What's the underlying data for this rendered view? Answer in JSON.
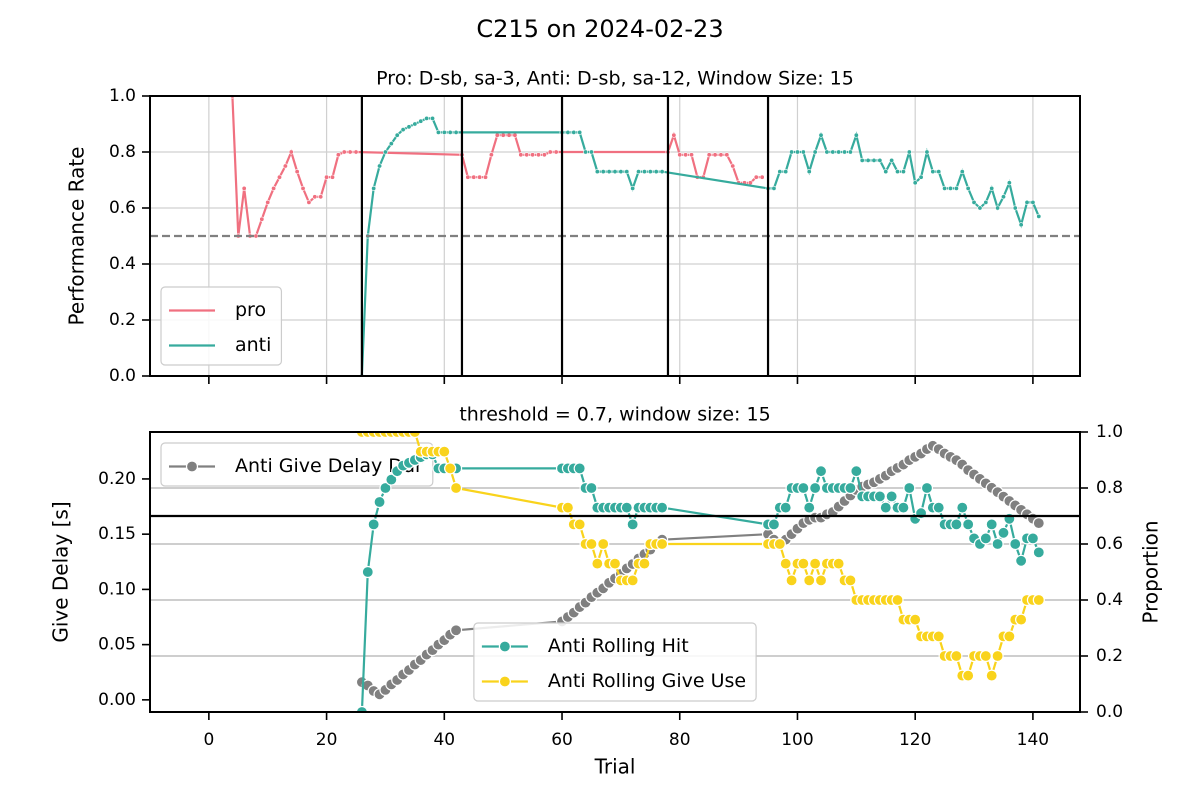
{
  "title": "C215 on 2024-02-23",
  "chart_data": [
    {
      "type": "line",
      "title": "Pro: D-sb, sa-3, Anti: D-sb, sa-12, Window Size: 15",
      "ylabel": "Performance Rate",
      "xlim": [
        -10,
        148
      ],
      "ylim": [
        0,
        1
      ],
      "xticks": [
        0,
        20,
        40,
        60,
        80,
        100,
        120,
        140
      ],
      "yticks": [
        {
          "value": 0,
          "label": "0.0"
        },
        0.2,
        0.4,
        0.6,
        0.8,
        {
          "value": 1,
          "label": "1.0"
        }
      ],
      "grid": true,
      "legend": "lower left",
      "hline": {
        "value": 0.5,
        "color": "#808080",
        "style": "dashed"
      },
      "vlines": [
        26,
        43,
        60,
        78,
        95
      ],
      "series": [
        {
          "name": "pro",
          "color": "#f07080",
          "x": [
            4,
            5,
            6,
            7,
            8,
            9,
            10,
            11,
            12,
            13,
            14,
            15,
            16,
            17,
            18,
            19,
            20,
            21,
            22,
            23,
            24,
            25,
            43,
            44,
            45,
            46,
            47,
            48,
            49,
            50,
            51,
            52,
            53,
            54,
            55,
            56,
            57,
            58,
            59,
            78,
            79,
            80,
            81,
            82,
            83,
            84,
            85,
            86,
            87,
            88,
            89,
            90,
            91,
            92,
            93,
            94
          ],
          "values": [
            1.0,
            0.5,
            0.67,
            0.5,
            0.5,
            0.56,
            0.62,
            0.67,
            0.71,
            0.75,
            0.8,
            0.73,
            0.67,
            0.62,
            0.64,
            0.64,
            0.71,
            0.71,
            0.79,
            0.8,
            0.8,
            0.8,
            0.79,
            0.71,
            0.71,
            0.71,
            0.71,
            0.79,
            0.86,
            0.86,
            0.86,
            0.86,
            0.79,
            0.79,
            0.79,
            0.79,
            0.79,
            0.8,
            0.8,
            0.8,
            0.86,
            0.79,
            0.79,
            0.79,
            0.71,
            0.71,
            0.79,
            0.79,
            0.79,
            0.79,
            0.75,
            0.69,
            0.69,
            0.69,
            0.71,
            0.71
          ]
        },
        {
          "name": "anti",
          "color": "#36ab9d",
          "x": [
            26,
            27,
            28,
            29,
            30,
            31,
            32,
            33,
            34,
            35,
            36,
            37,
            38,
            39,
            40,
            41,
            42,
            60,
            61,
            62,
            63,
            64,
            65,
            66,
            67,
            68,
            69,
            70,
            71,
            72,
            73,
            74,
            75,
            76,
            77,
            95,
            96,
            97,
            98,
            99,
            100,
            101,
            102,
            103,
            104,
            105,
            106,
            107,
            108,
            109,
            110,
            111,
            112,
            113,
            114,
            115,
            116,
            117,
            118,
            119,
            120,
            121,
            122,
            123,
            124,
            125,
            126,
            127,
            128,
            129,
            130,
            131,
            132,
            133,
            134,
            135,
            136,
            137,
            138,
            139,
            140,
            141
          ],
          "values": [
            0,
            0.5,
            0.67,
            0.75,
            0.8,
            0.83,
            0.86,
            0.88,
            0.89,
            0.9,
            0.91,
            0.92,
            0.92,
            0.87,
            0.87,
            0.87,
            0.87,
            0.87,
            0.87,
            0.87,
            0.87,
            0.8,
            0.8,
            0.73,
            0.73,
            0.73,
            0.73,
            0.73,
            0.73,
            0.67,
            0.73,
            0.73,
            0.73,
            0.73,
            0.73,
            0.67,
            0.67,
            0.73,
            0.73,
            0.8,
            0.8,
            0.8,
            0.73,
            0.8,
            0.86,
            0.8,
            0.8,
            0.8,
            0.8,
            0.8,
            0.86,
            0.77,
            0.77,
            0.77,
            0.77,
            0.73,
            0.77,
            0.73,
            0.73,
            0.8,
            0.69,
            0.71,
            0.8,
            0.73,
            0.73,
            0.67,
            0.67,
            0.67,
            0.73,
            0.67,
            0.62,
            0.6,
            0.62,
            0.67,
            0.6,
            0.64,
            0.69,
            0.6,
            0.54,
            0.62,
            0.62,
            0.57
          ]
        }
      ]
    },
    {
      "type": "line",
      "title": "threshold = 0.7, window size: 15",
      "xlabel": "Trial",
      "ylabel": "Give Delay [s]",
      "y2label": "Proportion",
      "xlim": [
        -10,
        148
      ],
      "ylim": [
        -0.011,
        0.2425
      ],
      "y2lim": [
        0,
        1
      ],
      "xticks": [
        0,
        20,
        40,
        60,
        80,
        100,
        120,
        140
      ],
      "yticks": [
        {
          "value": 0,
          "label": "0.00"
        },
        0.05,
        {
          "value": 0.1,
          "label": "0.10"
        },
        0.15,
        {
          "value": 0.2,
          "label": "0.20"
        }
      ],
      "y2ticks": [
        {
          "value": 0,
          "label": "0.0"
        },
        0.2,
        0.4,
        0.6,
        0.8,
        {
          "value": 1,
          "label": "1.0"
        }
      ],
      "grid": "y2",
      "legend": "upper left",
      "legend2": "lower center",
      "hline": {
        "value": 0.7,
        "axis": "y2",
        "color": "#000000",
        "style": "solid"
      },
      "series": [
        {
          "name": "Anti Give Delay Dur",
          "color": "#808080",
          "x": [
            26,
            27,
            28,
            29,
            30,
            31,
            32,
            33,
            34,
            35,
            36,
            37,
            38,
            39,
            40,
            41,
            42,
            60,
            61,
            62,
            63,
            64,
            65,
            66,
            67,
            68,
            69,
            70,
            71,
            72,
            73,
            74,
            75,
            76,
            77,
            95,
            96,
            97,
            98,
            99,
            100,
            101,
            102,
            103,
            104,
            105,
            106,
            107,
            108,
            109,
            110,
            111,
            112,
            113,
            114,
            115,
            116,
            117,
            118,
            119,
            120,
            121,
            122,
            123,
            124,
            125,
            126,
            127,
            128,
            129,
            130,
            131,
            132,
            133,
            134,
            135,
            136,
            137,
            138,
            139,
            140,
            141
          ],
          "values": [
            0.016,
            0.013,
            0.008,
            0.005,
            0.009,
            0.014,
            0.018,
            0.023,
            0.027,
            0.032,
            0.036,
            0.041,
            0.045,
            0.05,
            0.054,
            0.059,
            0.063,
            0.071,
            0.075,
            0.079,
            0.084,
            0.088,
            0.093,
            0.097,
            0.101,
            0.106,
            0.11,
            0.114,
            0.119,
            0.123,
            0.128,
            0.132,
            0.136,
            0.141,
            0.145,
            0.15,
            0.145,
            0.14,
            0.145,
            0.15,
            0.155,
            0.16,
            0.163,
            0.165,
            0.165,
            0.168,
            0.17,
            0.175,
            0.18,
            0.185,
            0.19,
            0.193,
            0.195,
            0.197,
            0.2,
            0.203,
            0.207,
            0.21,
            0.213,
            0.217,
            0.22,
            0.223,
            0.227,
            0.23,
            0.227,
            0.223,
            0.22,
            0.217,
            0.213,
            0.208,
            0.204,
            0.2,
            0.196,
            0.192,
            0.188,
            0.184,
            0.18,
            0.176,
            0.172,
            0.168,
            0.164,
            0.16
          ]
        },
        {
          "name": "Anti Rolling Hit",
          "color": "#36ab9d",
          "axis": "y2",
          "x": [
            26,
            27,
            28,
            29,
            30,
            31,
            32,
            33,
            34,
            35,
            36,
            37,
            38,
            39,
            40,
            41,
            42,
            60,
            61,
            62,
            63,
            64,
            65,
            66,
            67,
            68,
            69,
            70,
            71,
            72,
            73,
            74,
            75,
            76,
            77,
            95,
            96,
            97,
            98,
            99,
            100,
            101,
            102,
            103,
            104,
            105,
            106,
            107,
            108,
            109,
            110,
            111,
            112,
            113,
            114,
            115,
            116,
            117,
            118,
            119,
            120,
            121,
            122,
            123,
            124,
            125,
            126,
            127,
            128,
            129,
            130,
            131,
            132,
            133,
            134,
            135,
            136,
            137,
            138,
            139,
            140,
            141
          ],
          "values": [
            0,
            0.5,
            0.67,
            0.75,
            0.8,
            0.83,
            0.86,
            0.88,
            0.89,
            0.9,
            0.91,
            0.92,
            0.92,
            0.87,
            0.87,
            0.87,
            0.87,
            0.87,
            0.87,
            0.87,
            0.87,
            0.8,
            0.8,
            0.73,
            0.73,
            0.73,
            0.73,
            0.73,
            0.73,
            0.67,
            0.73,
            0.73,
            0.73,
            0.73,
            0.73,
            0.67,
            0.67,
            0.73,
            0.73,
            0.8,
            0.8,
            0.8,
            0.73,
            0.8,
            0.86,
            0.8,
            0.8,
            0.8,
            0.8,
            0.8,
            0.86,
            0.77,
            0.77,
            0.77,
            0.77,
            0.73,
            0.77,
            0.73,
            0.73,
            0.8,
            0.69,
            0.71,
            0.8,
            0.73,
            0.73,
            0.67,
            0.67,
            0.67,
            0.73,
            0.67,
            0.62,
            0.6,
            0.62,
            0.67,
            0.6,
            0.64,
            0.69,
            0.6,
            0.54,
            0.62,
            0.62,
            0.57
          ]
        },
        {
          "name": "Anti Rolling Give Use",
          "color": "#f9d31c",
          "axis": "y2",
          "x": [
            26,
            27,
            28,
            29,
            30,
            31,
            32,
            33,
            34,
            35,
            36,
            37,
            38,
            39,
            40,
            41,
            42,
            60,
            61,
            62,
            63,
            64,
            65,
            66,
            67,
            68,
            69,
            70,
            71,
            72,
            73,
            74,
            75,
            76,
            77,
            95,
            96,
            97,
            98,
            99,
            100,
            101,
            102,
            103,
            104,
            105,
            106,
            107,
            108,
            109,
            110,
            111,
            112,
            113,
            114,
            115,
            116,
            117,
            118,
            119,
            120,
            121,
            122,
            123,
            124,
            125,
            126,
            127,
            128,
            129,
            130,
            131,
            132,
            133,
            134,
            135,
            136,
            137,
            138,
            139,
            140,
            141
          ],
          "values": [
            1.0,
            1.0,
            1.0,
            1.0,
            1.0,
            1.0,
            1.0,
            1.0,
            1.0,
            1.0,
            0.93,
            0.93,
            0.93,
            0.93,
            0.93,
            0.87,
            0.8,
            0.73,
            0.73,
            0.67,
            0.67,
            0.6,
            0.6,
            0.53,
            0.6,
            0.53,
            0.53,
            0.47,
            0.47,
            0.47,
            0.53,
            0.53,
            0.6,
            0.6,
            0.6,
            0.6,
            0.6,
            0.6,
            0.53,
            0.47,
            0.53,
            0.53,
            0.47,
            0.53,
            0.47,
            0.53,
            0.53,
            0.53,
            0.47,
            0.47,
            0.4,
            0.4,
            0.4,
            0.4,
            0.4,
            0.4,
            0.4,
            0.4,
            0.33,
            0.33,
            0.33,
            0.27,
            0.27,
            0.27,
            0.27,
            0.2,
            0.2,
            0.2,
            0.13,
            0.13,
            0.2,
            0.2,
            0.2,
            0.13,
            0.2,
            0.27,
            0.27,
            0.33,
            0.33,
            0.4,
            0.4,
            0.4
          ]
        }
      ]
    }
  ]
}
